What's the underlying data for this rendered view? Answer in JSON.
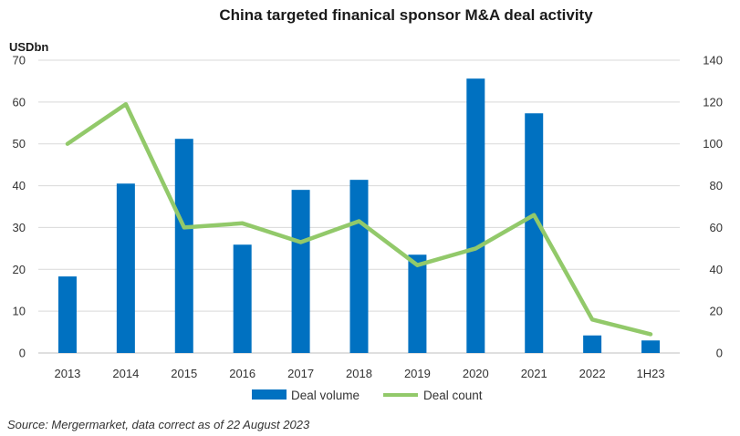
{
  "chart_data": {
    "type": "bar",
    "title": "China targeted finanical sponsor M&A deal activity",
    "y_unit_label": "USDbn",
    "categories": [
      "2013",
      "2014",
      "2015",
      "2016",
      "2017",
      "2018",
      "2019",
      "2020",
      "2021",
      "2022",
      "1H23"
    ],
    "series": [
      {
        "name": "Deal volume",
        "type": "bar",
        "axis": "left",
        "color": "#0071c1",
        "values": [
          18.3,
          40.5,
          51.2,
          25.9,
          39.0,
          41.4,
          23.5,
          65.6,
          57.3,
          4.2,
          3.0
        ]
      },
      {
        "name": "Deal count",
        "type": "line",
        "axis": "right",
        "color": "#92c96a",
        "values": [
          100,
          119,
          60,
          62,
          53,
          63,
          42,
          50,
          66,
          16,
          9
        ]
      }
    ],
    "ylim_left": [
      0,
      70
    ],
    "yticks_left": [
      0,
      10,
      20,
      30,
      40,
      50,
      60,
      70
    ],
    "ylim_right": [
      0,
      140
    ],
    "yticks_right": [
      0,
      20,
      40,
      60,
      80,
      100,
      120,
      140
    ],
    "grid": true,
    "legend_position": "bottom-center",
    "source_note": "Source: Mergermarket, data correct as of 22 August 2023"
  }
}
